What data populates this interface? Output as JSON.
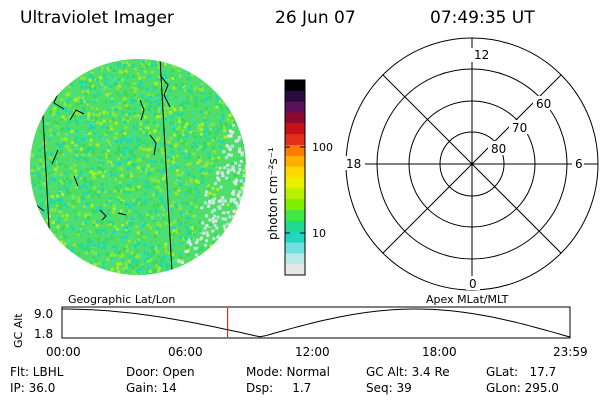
{
  "header": {
    "instrument": "Ultraviolet Imager",
    "date": "26 Jun 07",
    "time": "07:49:35 UT"
  },
  "colorbar": {
    "label": "photon cm⁻²s⁻¹",
    "ticks": [
      "100",
      "10"
    ],
    "colors": [
      "#000000",
      "#2a0a40",
      "#5a0f5a",
      "#8a0a30",
      "#c81018",
      "#e0301a",
      "#ff7a00",
      "#ffae00",
      "#ffd800",
      "#e8f000",
      "#b8f000",
      "#80f000",
      "#40e840",
      "#20d890",
      "#20d8c0",
      "#70e0e0",
      "#b8eaea",
      "#e6e6e6"
    ]
  },
  "polar": {
    "mlt_labels": [
      "12",
      "18",
      "6",
      "0"
    ],
    "lat_labels": [
      "60",
      "70",
      "80"
    ]
  },
  "timeline": {
    "left_label": "Geographic Lat/Lon",
    "right_label": "Apex MLat/MLT",
    "y_axis_label": "GC Alt",
    "y_ticks": [
      "9.0",
      "1.8"
    ],
    "x_ticks": [
      "00:00",
      "06:00",
      "12:00",
      "18:00",
      "23:59"
    ],
    "marker_time": "07:49:35",
    "marker_color": "#e00000"
  },
  "info": {
    "flt": "Flt: LBHL",
    "ip": "IP: 36.0",
    "door": "Door: Open",
    "gain": "Gain: 14",
    "mode": "Mode: Normal",
    "dsp": "Dsp:     1.7",
    "gcalt": "GC Alt: 3.4 Re",
    "seq": "Seq: 39",
    "glat": "GLat:   17.7",
    "glon": "GLon: 295.0"
  }
}
